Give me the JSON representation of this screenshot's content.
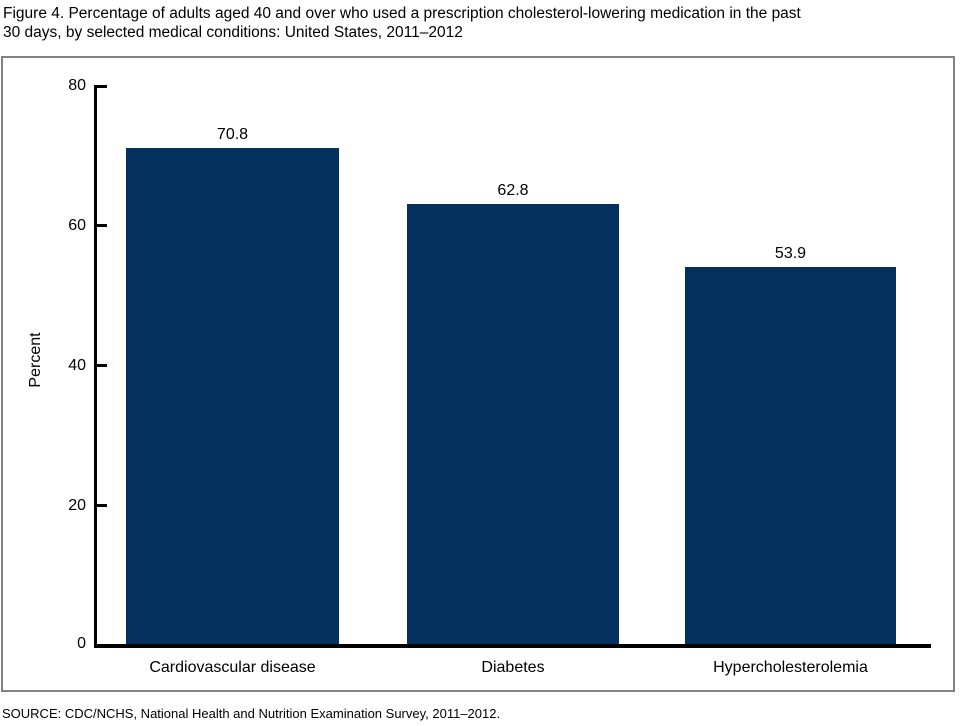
{
  "figure": {
    "title_line1": "Figure 4. Percentage of adults aged 40 and over who used a prescription cholesterol-lowering medication in the past",
    "title_line2": "30 days, by selected medical conditions: United States, 2011–2012",
    "source": "SOURCE: CDC/NCHS, National Health and Nutrition Examination Survey, 2011–2012."
  },
  "chart_data": {
    "type": "bar",
    "title": "Figure 4. Percentage of adults aged 40 and over who used a prescription cholesterol-lowering medication in the past 30 days, by selected medical conditions: United States, 2011–2012",
    "categories": [
      "Cardiovascular disease",
      "Diabetes",
      "Hypercholesterolemia"
    ],
    "values": [
      70.8,
      62.8,
      53.9
    ],
    "value_labels": [
      "70.8",
      "62.8",
      "53.9"
    ],
    "xlabel": "",
    "ylabel": "Percent",
    "ylim": [
      0,
      80
    ],
    "yticks": [
      0,
      20,
      40,
      60,
      80
    ],
    "grid": false,
    "legend": "none",
    "bar_color": "#04305e",
    "axis_color": "#000000",
    "frame_border_color": "#828282"
  }
}
